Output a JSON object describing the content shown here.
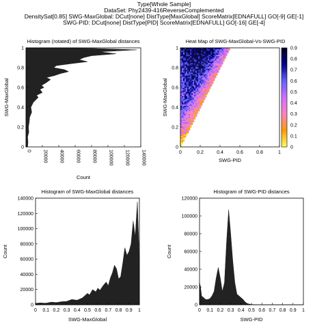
{
  "header": {
    "line1": "Type[Whole Sample]",
    "line2": "DataSet: Phy2439-416ReverseComplemented",
    "line3": "DensitySat[0.85] SWG-MaxGlobal: DCut[none] DistType[MaxGlobal] ScoreMatrix[EDNAFULL] GO[-9] GE[-1]",
    "line4": "SWG-PID: DCut[none] DistType[PID] ScoreMatrix[EDNAFULL] GO[-16] GE[-4]"
  },
  "colors": {
    "fill": "#222222",
    "axis": "#000000"
  },
  "chart_data": [
    {
      "type": "area",
      "orientation": "horizontal",
      "title": "Histogram (rotated) of SWG-MaxGlobal distances",
      "xlabel": "Count",
      "ylabel": "SWG-MaxGlobal",
      "xlim": [
        0,
        140000
      ],
      "ylim": [
        0,
        1
      ],
      "xticks": [
        "0",
        "20000",
        "40000",
        "60000",
        "80000",
        "100000",
        "120000",
        "140000"
      ],
      "yticks": [
        "0",
        "0.2",
        "0.4",
        "0.6",
        "0.8",
        "1"
      ],
      "x": [
        0,
        0.05,
        0.1,
        0.15,
        0.2,
        0.25,
        0.3,
        0.35,
        0.4,
        0.45,
        0.5,
        0.52,
        0.55,
        0.58,
        0.6,
        0.62,
        0.65,
        0.68,
        0.7,
        0.72,
        0.74,
        0.76,
        0.78,
        0.8,
        0.82,
        0.84,
        0.86,
        0.88,
        0.9,
        0.92,
        0.94,
        0.96,
        0.98,
        1.0
      ],
      "values": [
        2000,
        2500,
        2000,
        3500,
        3000,
        4000,
        4500,
        7000,
        6000,
        9000,
        15000,
        13000,
        20000,
        17000,
        22000,
        19000,
        25000,
        30000,
        25000,
        35000,
        42000,
        52000,
        47000,
        34000,
        37000,
        55000,
        75000,
        65000,
        70000,
        80000,
        110000,
        90000,
        135000,
        60000
      ]
    },
    {
      "type": "heatmap",
      "title": "Heat Map of SWG-MaxGlobal-Vs-SWG-PID",
      "xlabel": "SWG-PID",
      "ylabel": "SWG-MaxGlobal",
      "xlim": [
        0,
        1
      ],
      "ylim": [
        0,
        1
      ],
      "xticks": [
        "0",
        "0.2",
        "0.4",
        "0.6",
        "0.8",
        "1"
      ],
      "yticks": [
        "0",
        "0.2",
        "0.4",
        "0.6",
        "0.8",
        "1"
      ],
      "colorbar_ticks": [
        "0",
        "0.1",
        "0.2",
        "0.3",
        "0.4",
        "0.5",
        "0.6",
        "0.7",
        "0.8",
        "0.9"
      ],
      "colorbar_range": [
        0,
        0.9
      ],
      "colormap": [
        "#ffff60",
        "#ff9900",
        "#ff80c0",
        "#cc70ff",
        "#6060ff",
        "#000088",
        "#000022"
      ],
      "density_summary": "density concentrated in wedge where SWG-MaxGlobal > about 2 x SWG-PID; highest near SWG-PID 0.05-0.35, SWG-MaxGlobal 0.6-1.0"
    },
    {
      "type": "area",
      "title": "Histogram of SWG-MaxGlobal distances",
      "xlabel": "SWG-MaxGlobal",
      "ylabel": "Count",
      "xlim": [
        0,
        1
      ],
      "ylim": [
        0,
        140000
      ],
      "xticks": [
        "0",
        "0.1",
        "0.2",
        "0.3",
        "0.4",
        "0.5",
        "0.6",
        "0.7",
        "0.8",
        "0.9",
        "1"
      ],
      "yticks": [
        "0",
        "20000",
        "40000",
        "60000",
        "80000",
        "100000",
        "120000",
        "140000"
      ],
      "x": [
        0,
        0.05,
        0.1,
        0.15,
        0.2,
        0.25,
        0.3,
        0.35,
        0.4,
        0.45,
        0.5,
        0.52,
        0.55,
        0.58,
        0.6,
        0.62,
        0.65,
        0.68,
        0.7,
        0.72,
        0.74,
        0.76,
        0.78,
        0.8,
        0.82,
        0.84,
        0.86,
        0.88,
        0.9,
        0.92,
        0.94,
        0.96,
        0.98,
        1.0
      ],
      "values": [
        2000,
        2500,
        2000,
        3500,
        3000,
        4000,
        4500,
        7000,
        6000,
        9000,
        15000,
        13000,
        20000,
        17000,
        22000,
        19000,
        25000,
        30000,
        25000,
        35000,
        42000,
        52000,
        47000,
        34000,
        37000,
        55000,
        75000,
        65000,
        70000,
        80000,
        110000,
        90000,
        135000,
        60000
      ]
    },
    {
      "type": "area",
      "title": "Histogram of SWG-PID distances",
      "xlabel": "SWG-PID",
      "ylabel": "Count",
      "xlim": [
        0,
        1
      ],
      "ylim": [
        0,
        120000
      ],
      "xticks": [
        "0",
        "0.1",
        "0.2",
        "0.3",
        "0.4",
        "0.5",
        "0.6",
        "0.7",
        "0.8",
        "0.9",
        "1"
      ],
      "yticks": [
        "0",
        "20000",
        "40000",
        "60000",
        "80000",
        "100000",
        "120000"
      ],
      "x": [
        0,
        0.01,
        0.02,
        0.04,
        0.06,
        0.08,
        0.1,
        0.12,
        0.14,
        0.16,
        0.18,
        0.2,
        0.22,
        0.24,
        0.26,
        0.28,
        0.3,
        0.32,
        0.34,
        0.36,
        0.38,
        0.4,
        0.42,
        0.44,
        0.46,
        0.48,
        0.5,
        0.6,
        0.8,
        1.0
      ],
      "values": [
        25000,
        20000,
        10000,
        8000,
        6000,
        6000,
        7000,
        10000,
        15000,
        30000,
        42000,
        30000,
        15000,
        25000,
        70000,
        107000,
        80000,
        50000,
        25000,
        12000,
        10000,
        8000,
        6000,
        3000,
        1500,
        800,
        300,
        0,
        0,
        0
      ]
    }
  ]
}
